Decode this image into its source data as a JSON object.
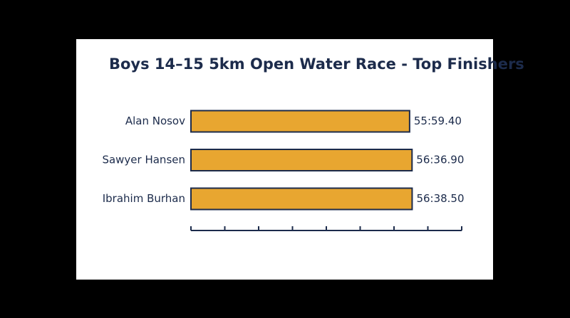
{
  "chart_data": {
    "type": "bar",
    "orientation": "horizontal",
    "title": "Boys 14–15 5km Open Water Race - Top Finishers",
    "categories": [
      "Alan Nosov",
      "Sawyer Hansen",
      "Ibrahim Burhan"
    ],
    "values": [
      3359.4,
      3396.9,
      3398.5
    ],
    "value_labels": [
      "55:59.40",
      "56:36.90",
      "56:38.50"
    ],
    "color": "#e8a630",
    "xlim": [
      0,
      4160
    ],
    "xticks": [
      0,
      520,
      1040,
      1560,
      2080,
      2600,
      3120,
      3640,
      4160
    ]
  }
}
